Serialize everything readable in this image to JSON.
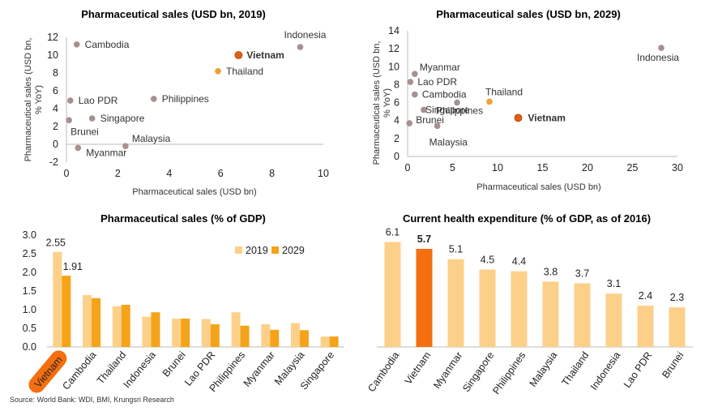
{
  "colors": {
    "dot_default": "#a89090",
    "dot_thailand": "#f0a030",
    "dot_vietnam": "#e06010",
    "highlight_text": "#e06010",
    "bar_2019": "#fdd08a",
    "bar_2029": "#f5a318",
    "bar_health": "#fdd08a",
    "bar_health_highlight": "#f56e10"
  },
  "source": "Source: World Bank: WDI, BMI,  Krungsri Research",
  "chart_data": [
    {
      "type": "scatter",
      "title": "Pharmaceutical sales (USD bn, 2019)",
      "xlabel": "Pharmaceutical sales (USD bn)",
      "ylabel": "Pharmaceutical sales (USD bn, % YoY)",
      "xlim": [
        0,
        10
      ],
      "ylim": [
        -2,
        12
      ],
      "xticks": [
        0,
        2,
        4,
        6,
        8,
        10
      ],
      "yticks": [
        -2,
        0,
        2,
        4,
        6,
        8,
        10,
        12
      ],
      "points": [
        {
          "label": "Cambodia",
          "x": 0.4,
          "y": 11.2,
          "color": "#a89090"
        },
        {
          "label": "Indonesia",
          "x": 9.1,
          "y": 10.9,
          "color": "#a89090"
        },
        {
          "label": "Vietnam",
          "x": 6.7,
          "y": 10.0,
          "color": "#e06010",
          "highlight": true
        },
        {
          "label": "Thailand",
          "x": 5.9,
          "y": 8.2,
          "color": "#f0a030"
        },
        {
          "label": "Philippines",
          "x": 3.4,
          "y": 5.1,
          "color": "#a89090"
        },
        {
          "label": "Lao PDR",
          "x": 0.15,
          "y": 4.9,
          "color": "#a89090"
        },
        {
          "label": "Singapore",
          "x": 1.0,
          "y": 2.9,
          "color": "#a89090"
        },
        {
          "label": "Brunei",
          "x": 0.1,
          "y": 2.7,
          "color": "#a89090"
        },
        {
          "label": "Malaysia",
          "x": 2.3,
          "y": -0.2,
          "color": "#a89090"
        },
        {
          "label": "Myanmar",
          "x": 0.45,
          "y": -0.4,
          "color": "#a89090"
        }
      ]
    },
    {
      "type": "scatter",
      "title": "Pharmaceutical sales (USD bn, 2029)",
      "xlabel": "Pharmaceutical sales (USD bn)",
      "ylabel": "Pharmaceutical sales (USD bn, % YoY)",
      "xlim": [
        0,
        30
      ],
      "ylim": [
        0,
        14
      ],
      "xticks": [
        0,
        5,
        10,
        15,
        20,
        25,
        30
      ],
      "yticks": [
        0,
        2,
        4,
        6,
        8,
        10,
        12,
        14
      ],
      "points": [
        {
          "label": "Indonesia",
          "x": 28.2,
          "y": 12.1,
          "color": "#a89090"
        },
        {
          "label": "Myanmar",
          "x": 0.8,
          "y": 9.2,
          "color": "#a89090"
        },
        {
          "label": "Lao PDR",
          "x": 0.3,
          "y": 8.3,
          "color": "#a89090"
        },
        {
          "label": "Cambodia",
          "x": 0.8,
          "y": 6.9,
          "color": "#a89090"
        },
        {
          "label": "Thailand",
          "x": 9.1,
          "y": 6.1,
          "color": "#f0a030"
        },
        {
          "label": "Philippines",
          "x": 5.5,
          "y": 6.0,
          "color": "#a89090"
        },
        {
          "label": "Singapore",
          "x": 1.8,
          "y": 5.2,
          "color": "#a89090"
        },
        {
          "label": "Vietnam",
          "x": 12.3,
          "y": 4.3,
          "color": "#e06010",
          "highlight": true
        },
        {
          "label": "Brunei",
          "x": 0.2,
          "y": 3.7,
          "color": "#a89090"
        },
        {
          "label": "Malaysia",
          "x": 3.3,
          "y": 3.4,
          "color": "#a89090"
        }
      ]
    },
    {
      "type": "bar",
      "title": "Pharmaceutical sales (% of GDP)",
      "categories": [
        "Vietnam",
        "Cambodia",
        "Thailand",
        "Indonesia",
        "Brunei",
        "Lao PDR",
        "Philippines",
        "Myanmar",
        "Malaysia",
        "Singapore"
      ],
      "highlight_category": "Vietnam",
      "ylim": [
        0,
        3.0
      ],
      "yticks": [
        "0.0",
        "0.5",
        "1.0",
        "1.5",
        "2.0",
        "2.5",
        "3.0"
      ],
      "legend_position": "top-right",
      "series": [
        {
          "name": "2019",
          "color": "#fdd08a",
          "values": [
            2.55,
            1.39,
            1.09,
            0.81,
            0.76,
            0.75,
            0.93,
            0.61,
            0.64,
            0.28
          ]
        },
        {
          "name": "2029",
          "color": "#f5a318",
          "values": [
            1.91,
            1.31,
            1.13,
            0.93,
            0.76,
            0.61,
            0.57,
            0.46,
            0.45,
            0.28
          ]
        }
      ],
      "data_labels": [
        {
          "series": 0,
          "index": 0,
          "text": "2.55"
        },
        {
          "series": 1,
          "index": 0,
          "text": "1.91"
        }
      ]
    },
    {
      "type": "bar",
      "title": "Current health expenditure (% of GDP, as of 2016)",
      "categories": [
        "Cambodia",
        "Vietnam",
        "Myanmar",
        "Singapore",
        "Philippines",
        "Malaysia",
        "Thailand",
        "Indonesia",
        "Lao PDR",
        "Brunei"
      ],
      "values": [
        6.1,
        5.7,
        5.1,
        4.5,
        4.4,
        3.8,
        3.7,
        3.1,
        2.4,
        2.3
      ],
      "labels": [
        "6.1",
        "5.7",
        "5.1",
        "4.5",
        "4.4",
        "3.8",
        "3.7",
        "3.1",
        "2.4",
        "2.3"
      ],
      "highlight_index": 1,
      "ylim": [
        0,
        6.5
      ]
    }
  ]
}
